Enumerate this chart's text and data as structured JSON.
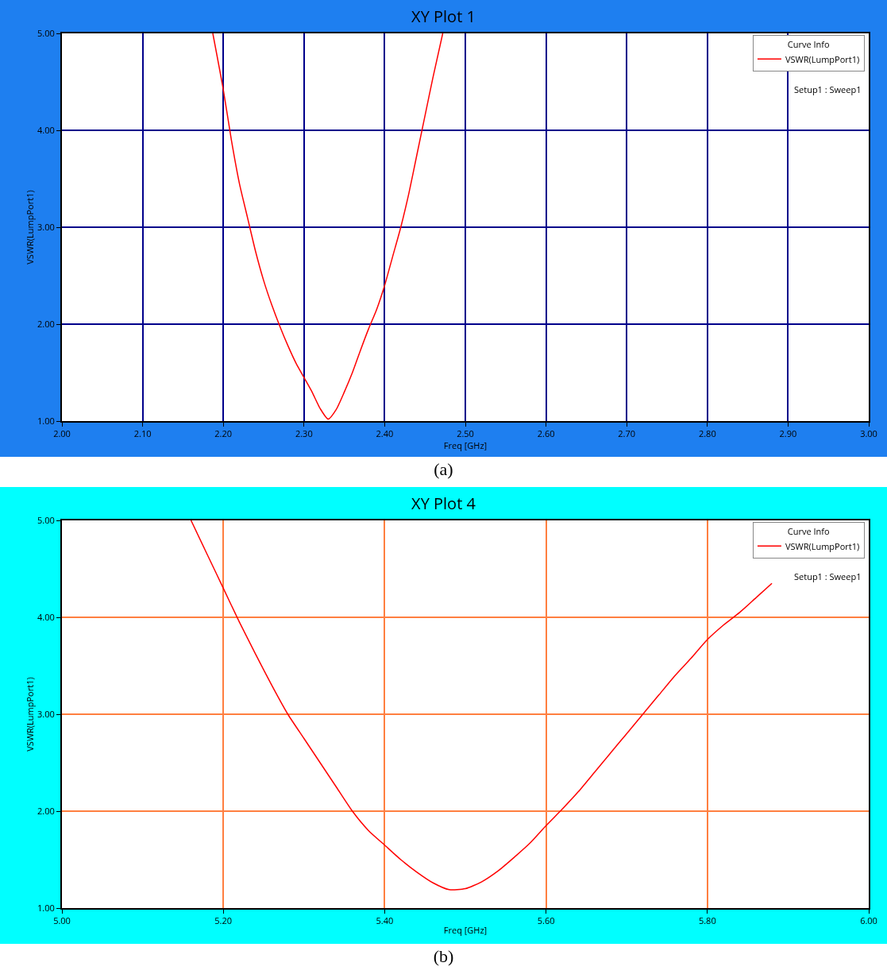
{
  "chart_data": [
    {
      "type": "line",
      "title": "XY Plot 1",
      "xlabel": "Freq [GHz]",
      "ylabel": "VSWR(LumpPort1)",
      "legend_title": "Curve Info",
      "legend": "top right",
      "grid": true,
      "x": [
        2.187,
        2.2,
        2.21,
        2.22,
        2.23,
        2.24,
        2.25,
        2.26,
        2.27,
        2.28,
        2.29,
        2.3,
        2.31,
        2.32,
        2.33,
        2.34,
        2.35,
        2.36,
        2.37,
        2.38,
        2.39,
        2.4,
        2.41,
        2.42,
        2.43,
        2.44,
        2.45,
        2.46,
        2.472
      ],
      "series": [
        {
          "name": "VSWR(LumpPort1)",
          "color": "#ff0000",
          "values": [
            5,
            4.42,
            3.9,
            3.45,
            3.1,
            2.75,
            2.45,
            2.2,
            1.98,
            1.78,
            1.6,
            1.45,
            1.3,
            1.13,
            1.02,
            1.12,
            1.3,
            1.5,
            1.73,
            1.95,
            2.15,
            2.4,
            2.7,
            3.0,
            3.35,
            3.75,
            4.15,
            4.55,
            5
          ]
        }
      ],
      "xlim": [
        2,
        3
      ],
      "xticks": [
        {
          "value": 2,
          "label": "2.00"
        },
        {
          "value": 2.1,
          "label": "2.10"
        },
        {
          "value": 2.2,
          "label": "2.20"
        },
        {
          "value": 2.3,
          "label": "2.30"
        },
        {
          "value": 2.4,
          "label": "2.40"
        },
        {
          "value": 2.5,
          "label": "2.50"
        },
        {
          "value": 2.6,
          "label": "2.60"
        },
        {
          "value": 2.7,
          "label": "2.70"
        },
        {
          "value": 2.8,
          "label": "2.80"
        },
        {
          "value": 2.9,
          "label": "2.90"
        },
        {
          "value": 3,
          "label": "3.00"
        }
      ],
      "ylim": [
        1,
        5
      ],
      "yticks": [
        {
          "value": 1,
          "label": "1.00"
        },
        {
          "value": 2,
          "label": "2.00"
        },
        {
          "value": 3,
          "label": "3.00"
        },
        {
          "value": 4,
          "label": "4.00"
        },
        {
          "value": 5,
          "label": "5.00"
        }
      ],
      "annotations": [
        "Setup1 : Sweep1",
        "(a)"
      ]
    },
    {
      "type": "line",
      "title": "XY Plot 4",
      "xlabel": "Freq [GHz]",
      "ylabel": "VSWR(LumpPort1)",
      "legend_title": "Curve Info",
      "legend": "top right",
      "grid": true,
      "x": [
        5.16,
        5.18,
        5.2,
        5.22,
        5.24,
        5.26,
        5.28,
        5.3,
        5.32,
        5.34,
        5.36,
        5.38,
        5.4,
        5.42,
        5.44,
        5.46,
        5.48,
        5.5,
        5.52,
        5.54,
        5.56,
        5.58,
        5.6,
        5.62,
        5.64,
        5.66,
        5.68,
        5.7,
        5.72,
        5.74,
        5.76,
        5.78,
        5.8,
        5.82,
        5.84,
        5.86,
        5.88
      ],
      "series": [
        {
          "name": "VSWR(LumpPort1)",
          "color": "#ff0000",
          "values": [
            5,
            4.65,
            4.3,
            3.95,
            3.62,
            3.3,
            3.0,
            2.75,
            2.5,
            2.25,
            2.0,
            1.8,
            1.65,
            1.5,
            1.37,
            1.26,
            1.19,
            1.2,
            1.27,
            1.38,
            1.52,
            1.67,
            1.85,
            2.02,
            2.2,
            2.4,
            2.6,
            2.8,
            3.0,
            3.2,
            3.4,
            3.58,
            3.77,
            3.92,
            4.05,
            4.2,
            4.35
          ]
        }
      ],
      "xlim": [
        5,
        6
      ],
      "xticks": [
        {
          "value": 5,
          "label": "5.00"
        },
        {
          "value": 5.2,
          "label": "5.20"
        },
        {
          "value": 5.4,
          "label": "5.40"
        },
        {
          "value": 5.6,
          "label": "5.60"
        },
        {
          "value": 5.8,
          "label": "5.80"
        },
        {
          "value": 6,
          "label": "6.00"
        }
      ],
      "ylim": [
        1,
        5
      ],
      "yticks": [
        {
          "value": 1,
          "label": "1.00"
        },
        {
          "value": 2,
          "label": "2.00"
        },
        {
          "value": 3,
          "label": "3.00"
        },
        {
          "value": 4,
          "label": "4.00"
        },
        {
          "value": 5,
          "label": "5.00"
        }
      ],
      "annotations": [
        "Setup1 : Sweep1",
        "(b)"
      ]
    }
  ]
}
